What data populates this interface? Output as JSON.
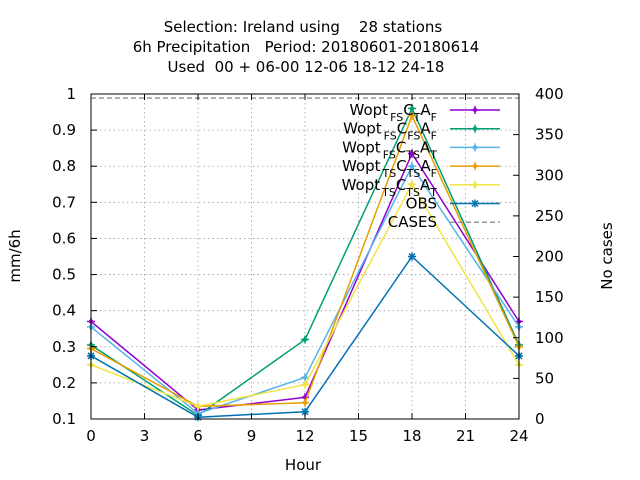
{
  "title_lines": [
    "Selection: Ireland using    28 stations",
    "6h Precipitation   Period: 20180601-20180614",
    "Used  00 + 06-00 12-06 18-12 24-18"
  ],
  "chart_data": {
    "type": "line",
    "title": "Selection: Ireland using 28 stations / 6h Precipitation Period: 20180601-20180614 / Used 00 + 06-00 12-06 18-12 24-18",
    "xlabel": "Hour",
    "ylabel": "mm/6h",
    "y2label": "No cases",
    "xlim": [
      0,
      24
    ],
    "ylim": [
      0.1,
      1.0
    ],
    "y2lim": [
      0,
      400
    ],
    "xticks": [
      "0",
      "3",
      "6",
      "9",
      "12",
      "15",
      "18",
      "21",
      "24"
    ],
    "yticks": [
      "0.1",
      "0.2",
      "0.3",
      "0.4",
      "0.5",
      "0.6",
      "0.7",
      "0.8",
      "0.9",
      "1"
    ],
    "y2ticks": [
      "0",
      "50",
      "100",
      "150",
      "200",
      "250",
      "300",
      "350",
      "400"
    ],
    "grid": true,
    "legend_position": "top-right",
    "x": [
      0,
      6,
      12,
      18,
      24
    ],
    "series": [
      {
        "legend": {
          "main": "Wopt",
          "parts": [
            [
              "FS",
              "sub"
            ],
            [
              "C",
              "main"
            ],
            [
              "T",
              "sub"
            ],
            [
              "A",
              "main"
            ],
            [
              "F",
              "sub"
            ]
          ]
        },
        "color": "#9400d3",
        "marker": "plus",
        "values": [
          0.37,
          0.125,
          0.16,
          0.835,
          0.37
        ]
      },
      {
        "legend": {
          "main": "Wopt",
          "parts": [
            [
              "FS",
              "sub"
            ],
            [
              "C",
              "main"
            ],
            [
              "FS",
              "sub"
            ],
            [
              "A",
              "main"
            ],
            [
              "F",
              "sub"
            ]
          ]
        },
        "color": "#009e73",
        "marker": "plus",
        "values": [
          0.305,
          0.11,
          0.32,
          0.96,
          0.305
        ]
      },
      {
        "legend": {
          "main": "Wopt",
          "parts": [
            [
              "FS",
              "sub"
            ],
            [
              "C",
              "main"
            ],
            [
              "TS",
              "sub"
            ],
            [
              "A",
              "main"
            ],
            [
              "T",
              "sub"
            ]
          ]
        },
        "color": "#56b4e9",
        "marker": "plus",
        "values": [
          0.355,
          0.115,
          0.215,
          0.8,
          0.355
        ]
      },
      {
        "legend": {
          "main": "Wopt",
          "parts": [
            [
              "TS",
              "sub"
            ],
            [
              "C",
              "main"
            ],
            [
              "TS",
              "sub"
            ],
            [
              "A",
              "main"
            ],
            [
              "F",
              "sub"
            ]
          ]
        },
        "color": "#e69f00",
        "marker": "plus",
        "values": [
          0.295,
          0.135,
          0.145,
          0.94,
          0.3
        ]
      },
      {
        "legend": {
          "main": "Wopt",
          "parts": [
            [
              "TS",
              "sub"
            ],
            [
              "C",
              "main"
            ],
            [
              "TS",
              "sub"
            ],
            [
              "A",
              "main"
            ],
            [
              "T",
              "sub"
            ]
          ]
        },
        "color": "#f0e442",
        "marker": "plus",
        "values": [
          0.25,
          0.135,
          0.195,
          0.75,
          0.25
        ]
      },
      {
        "name": "OBS",
        "color": "#0072b2",
        "marker": "star",
        "values": [
          0.275,
          0.105,
          0.12,
          0.55,
          0.275
        ]
      }
    ],
    "cases": {
      "name": "CASES",
      "color": "#999999",
      "axis": "y2",
      "x": [
        0,
        24
      ],
      "values": [
        395,
        395
      ]
    }
  }
}
